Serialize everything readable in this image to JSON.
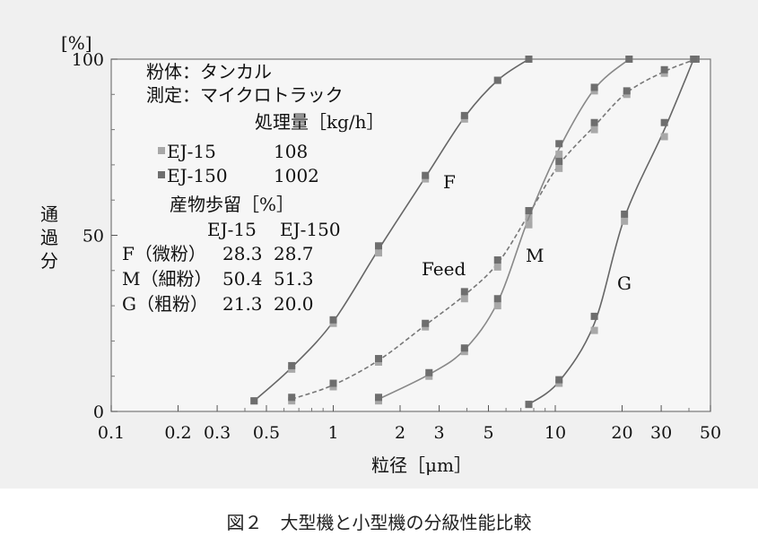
{
  "chart_data": {
    "type": "line",
    "x_scale": "log",
    "xlim": [
      0.1,
      50
    ],
    "ylim": [
      0,
      100
    ],
    "xlabel": "粒径［μm］",
    "ylabel": "通過分",
    "y_unit": "[%]",
    "x_ticks": [
      "0.1",
      "0.2",
      "0.3",
      "0.5",
      "1",
      "2",
      "3",
      "5",
      "10",
      "20",
      "30",
      "50"
    ],
    "x_tick_values": [
      0.1,
      0.2,
      0.3,
      0.5,
      1,
      2,
      3,
      5,
      10,
      20,
      30,
      50
    ],
    "y_ticks": [
      "0",
      "50",
      "100"
    ],
    "y_tick_values": [
      0,
      50,
      100
    ],
    "grid": false,
    "series": [
      {
        "name": "F",
        "style": "solid",
        "color": "#666666",
        "x": [
          0.44,
          0.65,
          1.0,
          1.6,
          2.6,
          3.9,
          5.5,
          7.6
        ],
        "EJ-15": [
          3,
          12,
          25,
          45,
          66,
          83,
          94,
          100
        ],
        "EJ-150": [
          3,
          13,
          26,
          47,
          67,
          84,
          94,
          100
        ]
      },
      {
        "name": "Feed",
        "style": "dashed",
        "color": "#777777",
        "x": [
          0.65,
          1.0,
          1.6,
          2.6,
          3.9,
          5.5,
          7.6,
          10.4,
          15.0,
          21.0,
          31.0,
          43.0
        ],
        "EJ-15": [
          3,
          7,
          14,
          24,
          32,
          41,
          55,
          69,
          80,
          90,
          96,
          100
        ],
        "EJ-150": [
          4,
          8,
          15,
          25,
          34,
          43,
          57,
          71,
          82,
          91,
          97,
          100
        ]
      },
      {
        "name": "M",
        "style": "solid",
        "color": "#888888",
        "x": [
          1.6,
          2.7,
          3.9,
          5.5,
          7.6,
          10.4,
          15.0,
          21.5
        ],
        "EJ-15": [
          3,
          10,
          17,
          30,
          53,
          73,
          91,
          100
        ],
        "EJ-150": [
          4,
          11,
          18,
          32,
          57,
          76,
          92,
          100
        ]
      },
      {
        "name": "G",
        "style": "solid",
        "color": "#666666",
        "x": [
          7.6,
          10.4,
          15.0,
          20.5,
          31.0,
          42.0
        ],
        "EJ-15": [
          2,
          8,
          23,
          54,
          78,
          100
        ],
        "EJ-150": [
          2,
          9,
          27,
          56,
          82,
          100
        ]
      }
    ],
    "markers": [
      {
        "name": "EJ-15",
        "color": "#a8a8a8"
      },
      {
        "name": "EJ-150",
        "color": "#6e6e6e"
      }
    ],
    "curve_labels": [
      "F",
      "Feed",
      "M",
      "G"
    ],
    "annotations": {
      "powder": "粉体：タンカル",
      "measurement": "測定：マイクロトラック",
      "throughput_header": "処理量［kg/h］",
      "throughput_rows": [
        {
          "model": "EJ-15",
          "value": "108"
        },
        {
          "model": "EJ-150",
          "value": "1002"
        }
      ],
      "yield_header": "産物歩留［%］",
      "yield_columns": [
        "EJ-15",
        "EJ-150"
      ],
      "yield_rows": [
        {
          "label": "F（微粉）",
          "ej15": "28.3",
          "ej150": "28.7"
        },
        {
          "label": "M（細粉）",
          "ej15": "50.4",
          "ej150": "51.3"
        },
        {
          "label": "G（粗粉）",
          "ej15": "21.3",
          "ej150": "20.0"
        }
      ]
    },
    "caption": "図２　大型機と小型機の分級性能比較"
  }
}
